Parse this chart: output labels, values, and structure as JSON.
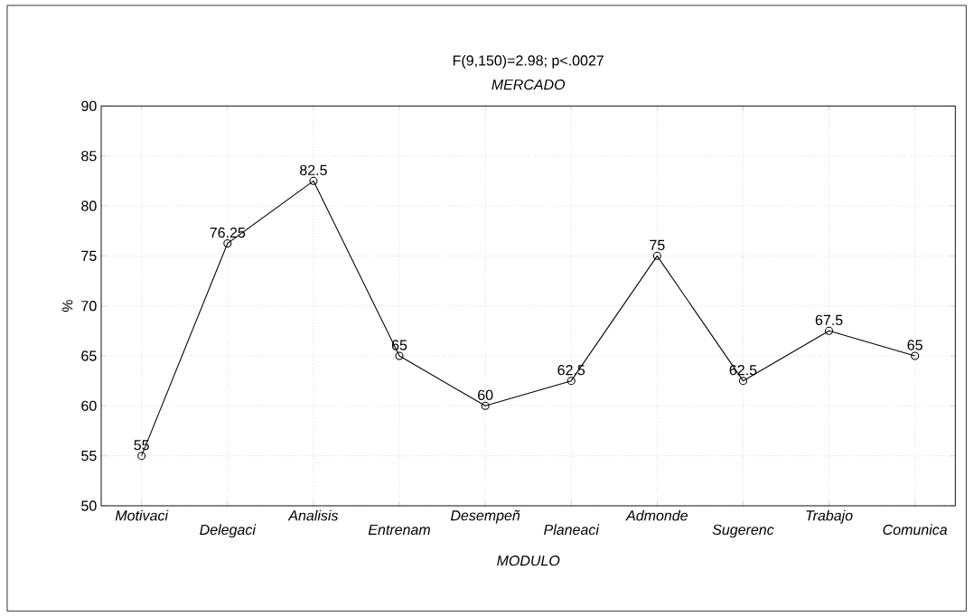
{
  "chart_data": {
    "type": "line",
    "title": "F(9,150)=2.98; p<.0027",
    "subtitle": "MERCADO",
    "xlabel": "MODULO",
    "ylabel": "%",
    "categories": [
      "Motivaci",
      "Delegaci",
      "Analisis",
      "Entrenam",
      "Desempeñ",
      "Planeaci",
      "Admonde",
      "Sugerenc",
      "Trabajo",
      "Comunica"
    ],
    "values": [
      55,
      76.25,
      82.5,
      65,
      60,
      62.5,
      75,
      62.5,
      67.5,
      65
    ],
    "value_labels": [
      "55",
      "76.25",
      "82.5",
      "65",
      "60",
      "62.5",
      "75",
      "62.5",
      "67.5",
      "65"
    ],
    "color": "#000000",
    "marker": "circle",
    "line_style": "solid",
    "grid": true,
    "ylim": [
      50,
      90
    ],
    "yticks": [
      50,
      55,
      60,
      65,
      70,
      75,
      80,
      85,
      90
    ]
  }
}
